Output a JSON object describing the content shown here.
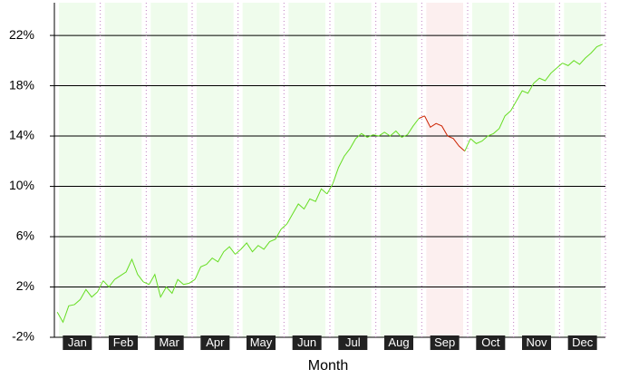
{
  "chart_data": {
    "type": "line",
    "x_label": "Month",
    "categories": [
      "Jan",
      "Feb",
      "Mar",
      "Apr",
      "May",
      "Jun",
      "Jul",
      "Aug",
      "Sep",
      "Oct",
      "Nov",
      "Dec"
    ],
    "values": [
      [
        0,
        -0.8,
        0.5,
        0.6,
        1.0,
        1.8,
        1.2,
        1.6
      ],
      [
        2.5,
        2.0,
        2.6,
        2.9,
        3.2,
        4.2,
        3.0,
        2.4
      ],
      [
        2.2,
        3.0,
        1.2,
        2.0,
        1.5,
        2.6,
        2.2,
        2.3
      ],
      [
        2.6,
        3.6,
        3.8,
        4.3,
        4.0,
        4.8,
        5.2,
        4.6
      ],
      [
        5.0,
        5.5,
        4.8,
        5.3,
        5.0,
        5.6,
        5.8,
        6.6
      ],
      [
        7.0,
        7.8,
        8.6,
        8.2,
        9.0,
        8.8,
        9.8,
        9.4
      ],
      [
        10.2,
        11.5,
        12.4,
        13.0,
        13.8,
        14.2,
        13.9,
        14.1
      ],
      [
        14.0,
        14.3,
        14.0,
        14.4,
        13.9,
        14.1,
        14.8,
        15.4
      ],
      [
        15.6,
        14.7,
        15.0,
        14.8,
        14.0,
        13.8,
        13.2,
        12.8
      ],
      [
        13.8,
        13.4,
        13.6,
        14.0,
        14.2,
        14.6,
        15.6,
        16.0
      ],
      [
        16.8,
        17.6,
        17.4,
        18.2,
        18.6,
        18.4,
        19.0,
        19.4
      ],
      [
        19.8,
        19.6,
        20.0,
        19.7,
        20.2,
        20.6,
        21.1,
        21.3
      ]
    ],
    "line_colors": [
      "#66dd22",
      "#66dd22",
      "#66dd22",
      "#66dd22",
      "#66dd22",
      "#66dd22",
      "#66dd22",
      "#66dd22",
      "#cc2200",
      "#66dd22",
      "#66dd22",
      "#66dd22"
    ],
    "band_colors": [
      "#effcec",
      "#effcec",
      "#effcec",
      "#effcec",
      "#effcec",
      "#effcec",
      "#effcec",
      "#effcec",
      "#fcefef",
      "#effcec",
      "#effcec",
      "#effcec"
    ],
    "ylim": [
      -2,
      24.6
    ],
    "yticks": [
      {
        "value": -2,
        "label": "-2%"
      },
      {
        "value": 2,
        "label": "2%"
      },
      {
        "value": 6,
        "label": "6%"
      },
      {
        "value": 10,
        "label": "10%"
      },
      {
        "value": 14,
        "label": "14%"
      },
      {
        "value": 18,
        "label": "18%"
      },
      {
        "value": 22,
        "label": "22%"
      }
    ],
    "grid": true
  }
}
